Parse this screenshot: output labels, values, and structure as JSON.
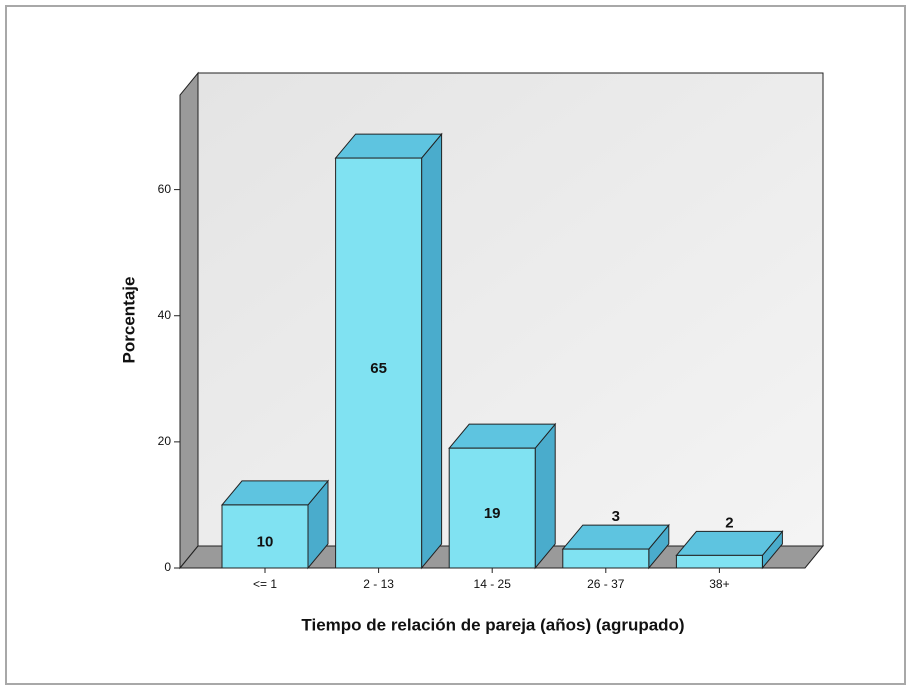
{
  "chart_data": {
    "type": "bar",
    "xlabel": "Tiempo de relación de pareja (años) (agrupado)",
    "ylabel": "Porcentaje",
    "categories": [
      "<= 1",
      "2 - 13",
      "14 - 25",
      "26 - 37",
      "38+"
    ],
    "values": [
      10,
      65,
      19,
      3,
      2
    ],
    "color": "#80e2f2",
    "ylim": [
      0,
      75
    ],
    "yticks": [
      0,
      20,
      40,
      60
    ]
  }
}
